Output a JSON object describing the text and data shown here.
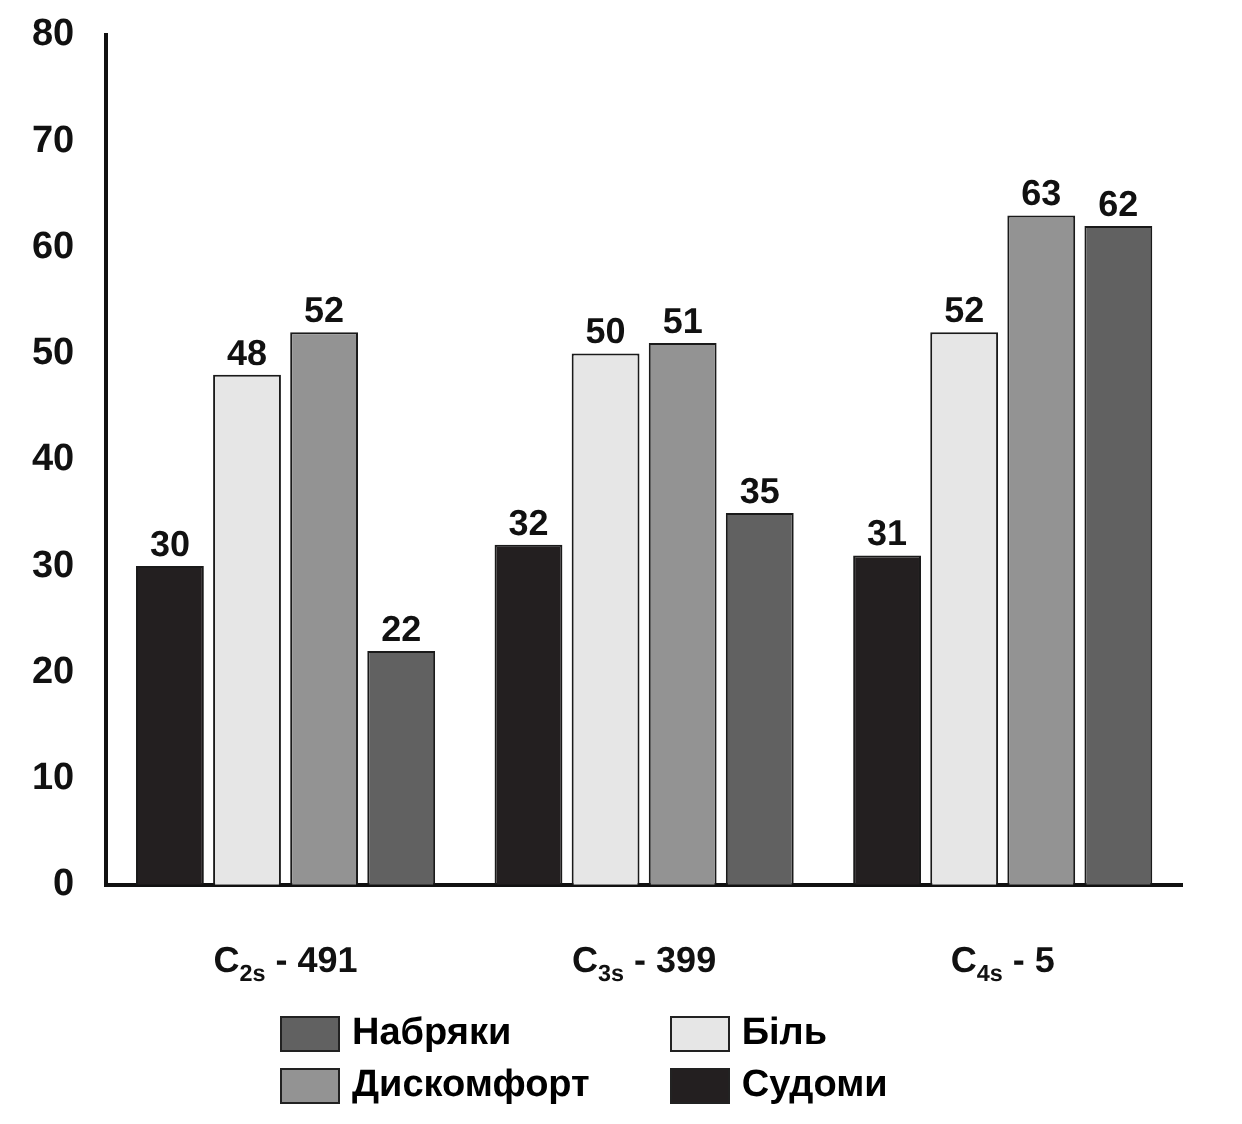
{
  "chart_data": {
    "type": "bar",
    "categories": [
      "C$_{2s}$ - 491",
      "C$_{3s}$ - 399",
      "C$_{4s}$ - 5"
    ],
    "series": [
      {
        "name": "Судоми",
        "color": "#231f20",
        "values": [
          30,
          32,
          31
        ]
      },
      {
        "name": "Біль",
        "color": "#e6e6e6",
        "values": [
          48,
          50,
          52
        ]
      },
      {
        "name": "Дискомфорт",
        "color": "#939393",
        "values": [
          52,
          51,
          63
        ]
      },
      {
        "name": "Набряки",
        "color": "#616161",
        "values": [
          22,
          35,
          62
        ]
      }
    ],
    "ylim": [
      0,
      80
    ],
    "yticks": [
      0,
      10,
      20,
      30,
      40,
      50,
      60,
      70,
      80
    ],
    "grid": false,
    "legend": "bottom",
    "data_labels": true
  }
}
